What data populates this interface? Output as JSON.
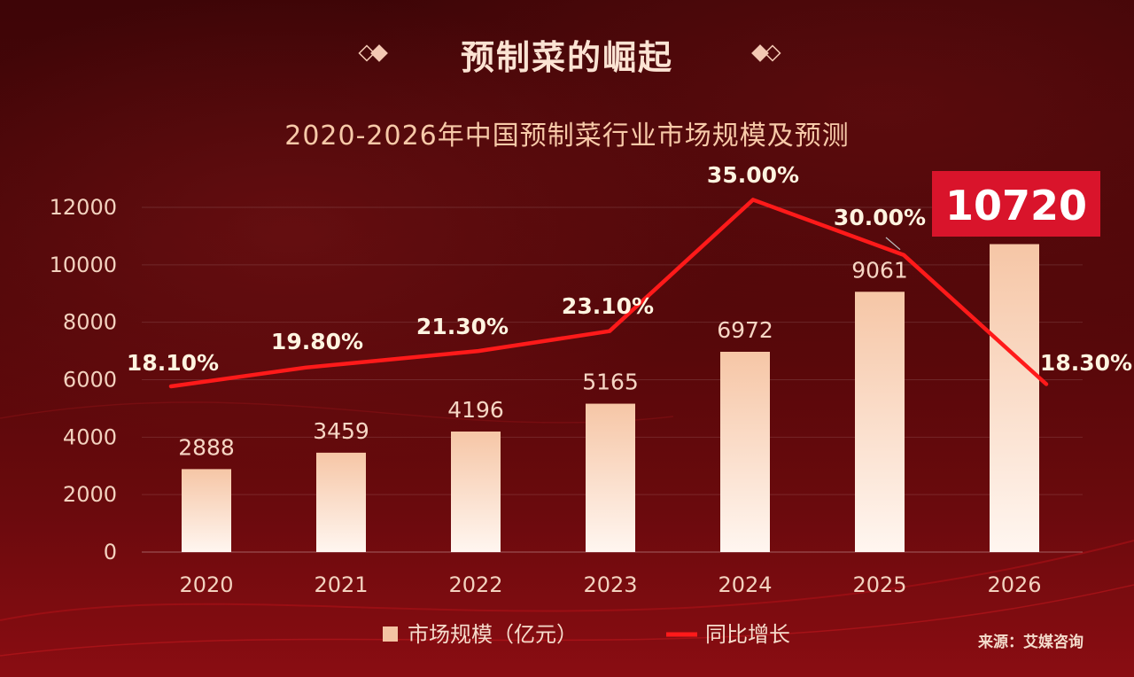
{
  "header": {
    "title": "预制菜的崛起"
  },
  "source": "来源：艾媒咨询",
  "colors": {
    "bar": "#f4c3a3",
    "line": "#ff1a1a",
    "highlight_box": "#d9142b"
  },
  "chart_data": {
    "type": "bar",
    "title": "2020-2026年中国预制菜行业市场规模及预测",
    "categories": [
      "2020",
      "2021",
      "2022",
      "2023",
      "2024",
      "2025",
      "2026"
    ],
    "ylim": [
      0,
      12000
    ],
    "yticks": [
      0,
      2000,
      4000,
      6000,
      8000,
      10000,
      12000
    ],
    "grid": true,
    "legend_position": "bottom",
    "series": [
      {
        "name": "市场规模（亿元）",
        "kind": "bar",
        "values": [
          2888,
          3459,
          4196,
          5165,
          6972,
          9061,
          10720
        ],
        "labels": [
          "2888",
          "3459",
          "4196",
          "5165",
          "6972",
          "9061",
          "10720"
        ]
      },
      {
        "name": "同比增长",
        "kind": "line",
        "values": [
          18.1,
          19.8,
          21.3,
          23.1,
          35.0,
          30.0,
          18.3
        ],
        "labels": [
          "18.10%",
          "19.80%",
          "21.30%",
          "23.10%",
          "35.00%",
          "30.00%",
          "18.30%"
        ]
      }
    ]
  }
}
